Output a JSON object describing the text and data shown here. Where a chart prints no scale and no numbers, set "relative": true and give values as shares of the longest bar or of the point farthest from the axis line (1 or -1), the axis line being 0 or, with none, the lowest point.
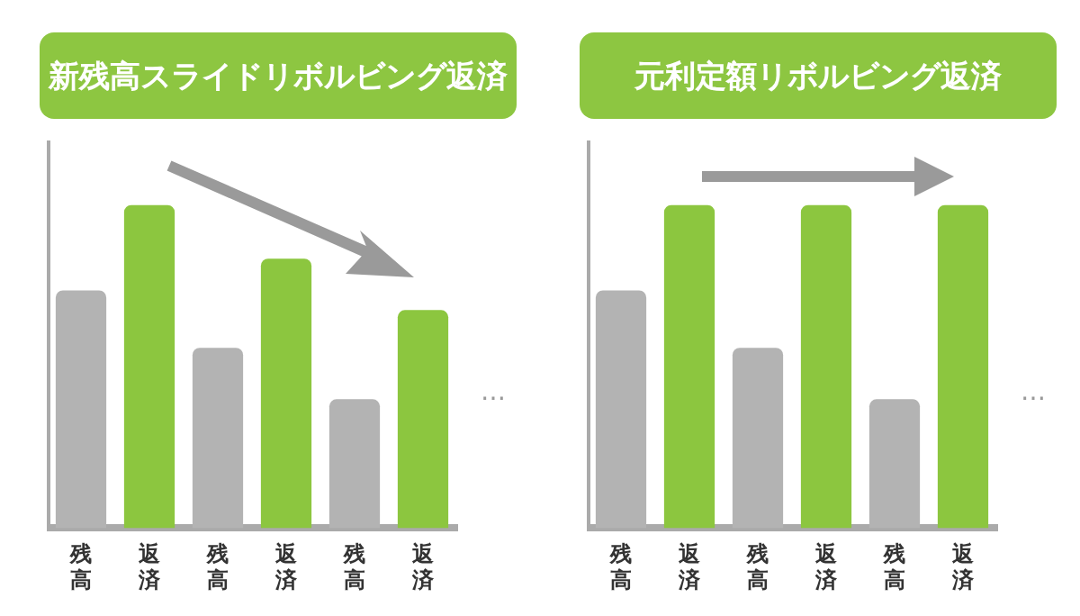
{
  "chart_data": [
    {
      "type": "bar",
      "title": "新残高スライドリボルビング返済",
      "relative": true,
      "categories": [
        "残高",
        "返済",
        "残高",
        "返済",
        "残高",
        "返済"
      ],
      "values": [
        0.736,
        1,
        0.558,
        0.834,
        0.399,
        0.675
      ],
      "colors": [
        "#b3b3b3",
        "#8cc63f",
        "#b3b3b3",
        "#8cc63f",
        "#b3b3b3",
        "#8cc63f"
      ],
      "annotations": [
        "…"
      ]
    },
    {
      "type": "bar",
      "title": "元利定額リボルビング返済",
      "relative": true,
      "categories": [
        "残高",
        "返済",
        "残高",
        "返済",
        "残高",
        "返済"
      ],
      "values": [
        0.736,
        1,
        0.558,
        1,
        0.399,
        1
      ],
      "colors": [
        "#b3b3b3",
        "#8cc63f",
        "#b3b3b3",
        "#8cc63f",
        "#b3b3b3",
        "#8cc63f"
      ],
      "annotations": [
        "…"
      ]
    }
  ]
}
